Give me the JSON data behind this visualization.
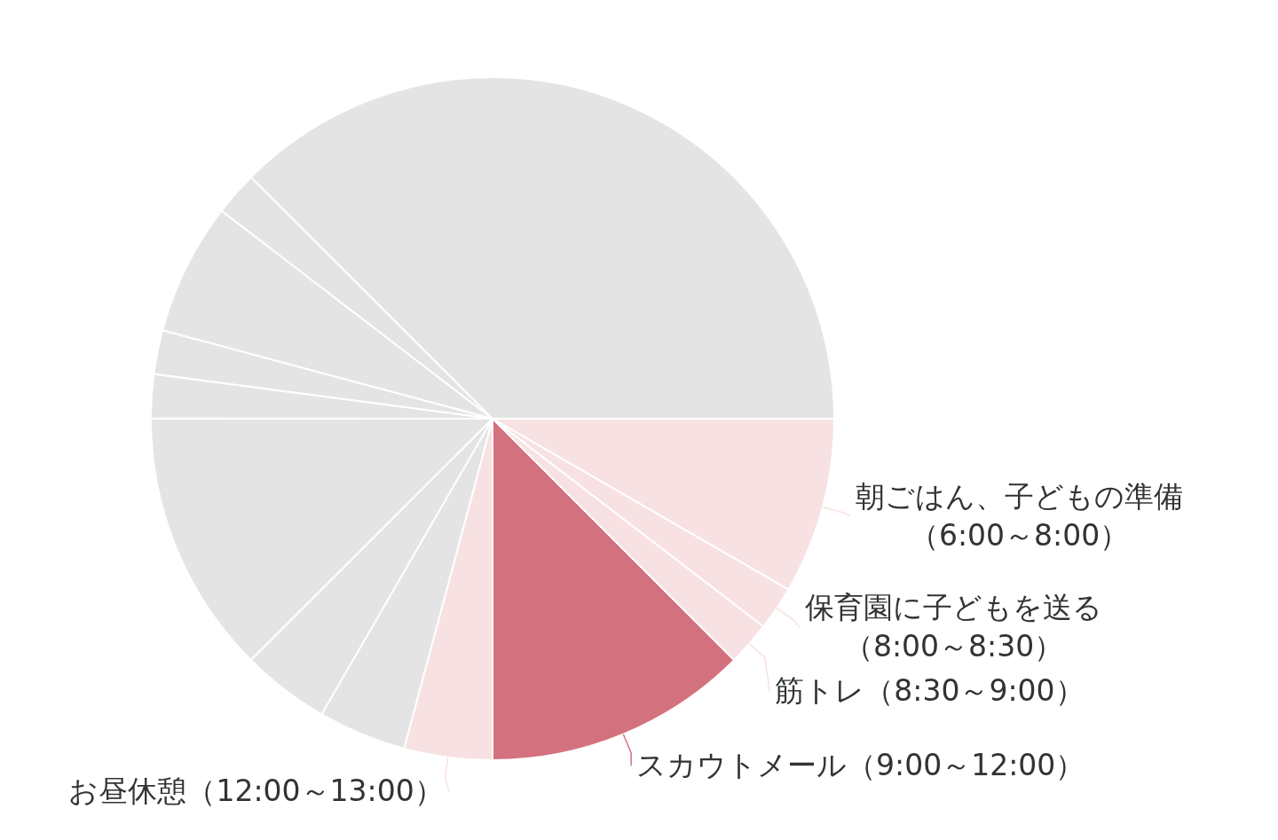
{
  "chart_data": {
    "type": "pie",
    "categories": [
      "朝ごはん、子どもの準備（6:00～8:00）",
      "保育園に子どもを送る（8:00～8:30）",
      "筋トレ（8:30～9:00）",
      "スカウトメール（9:00～12:00）",
      "お昼休憩（12:00～13:00）",
      null,
      null,
      null,
      null,
      null,
      null,
      null,
      null
    ],
    "values": [
      8.34,
      2.08,
      2.08,
      12.5,
      4.17,
      4.17,
      4.17,
      12.5,
      2.08,
      2.08,
      6.25,
      2.08,
      37.5
    ],
    "colors": [
      "#f8e1e2",
      "#f8e1e2",
      "#f8e1e2",
      "#d4717e",
      "#f8e1e2",
      "#e4e4e4",
      "#e4e4e4",
      "#e4e4e4",
      "#e4e4e4",
      "#e4e4e4",
      "#e4e4e4",
      "#e4e4e4",
      "#e4e4e4"
    ]
  }
}
